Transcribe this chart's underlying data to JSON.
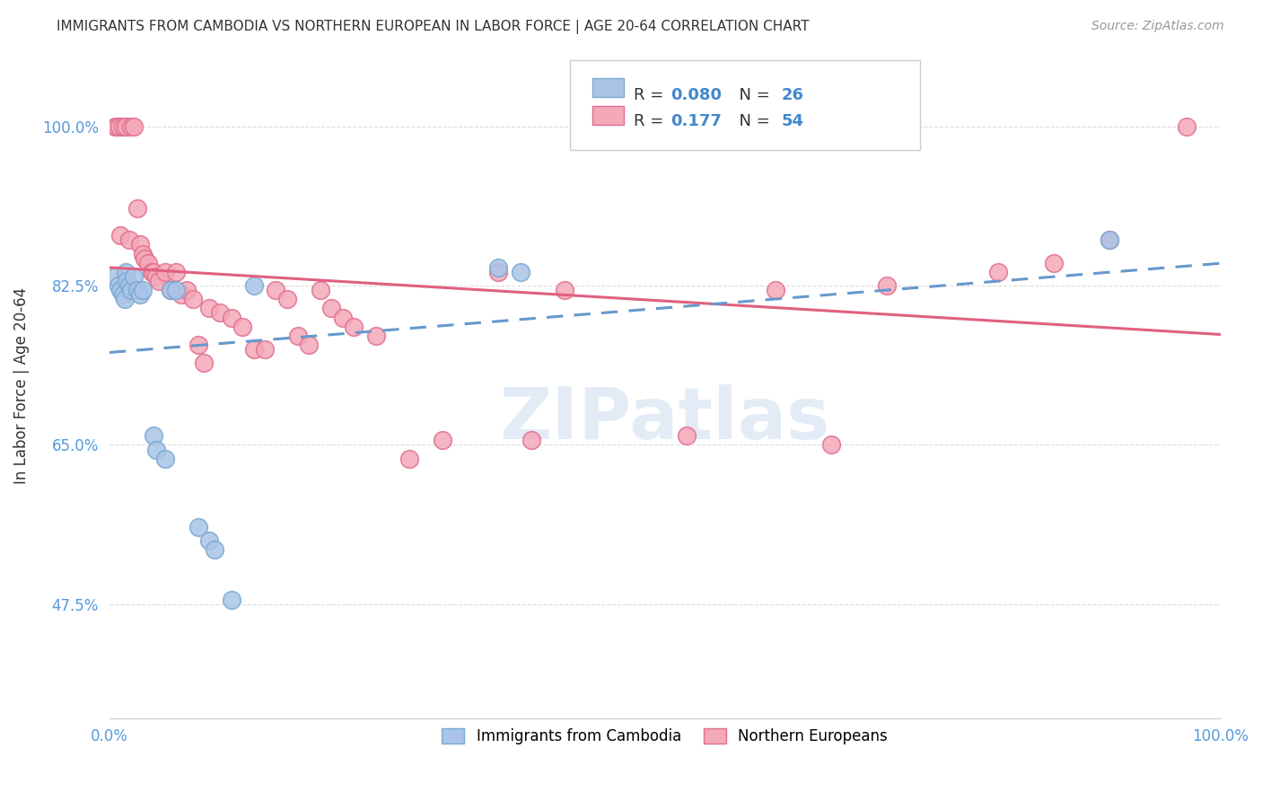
{
  "title": "IMMIGRANTS FROM CAMBODIA VS NORTHERN EUROPEAN IN LABOR FORCE | AGE 20-64 CORRELATION CHART",
  "source": "Source: ZipAtlas.com",
  "ylabel": "In Labor Force | Age 20-64",
  "xlim": [
    0.0,
    1.0
  ],
  "ylim": [
    0.35,
    1.08
  ],
  "xtick_positions": [
    0.0,
    1.0
  ],
  "xtick_labels": [
    "0.0%",
    "100.0%"
  ],
  "ytick_positions": [
    0.475,
    0.65,
    0.825,
    1.0
  ],
  "ytick_labels": [
    "47.5%",
    "65.0%",
    "82.5%",
    "100.0%"
  ],
  "grid_color": "#dddddd",
  "background_color": "#ffffff",
  "legend_labels": [
    "Immigrants from Cambodia",
    "Northern Europeans"
  ],
  "cambodia_color": "#aac4e8",
  "cambodia_edge_color": "#7aaad0",
  "northern_color": "#f4a8b8",
  "northern_edge_color": "#e07090",
  "cambodia_line_color": "#6699cc",
  "northern_line_color": "#e06080",
  "watermark": "ZIPatlas",
  "cambodia_x": [
    0.005,
    0.008,
    0.01,
    0.012,
    0.014,
    0.015,
    0.016,
    0.018,
    0.02,
    0.022,
    0.025,
    0.028,
    0.03,
    0.04,
    0.042,
    0.05,
    0.055,
    0.06,
    0.08,
    0.09,
    0.095,
    0.11,
    0.13,
    0.35,
    0.37,
    0.9
  ],
  "cambodia_y": [
    0.835,
    0.825,
    0.82,
    0.815,
    0.81,
    0.84,
    0.83,
    0.825,
    0.82,
    0.835,
    0.82,
    0.815,
    0.82,
    0.66,
    0.645,
    0.635,
    0.82,
    0.82,
    0.56,
    0.545,
    0.535,
    0.48,
    0.825,
    0.845,
    0.84,
    0.875
  ],
  "northern_x": [
    0.005,
    0.007,
    0.009,
    0.01,
    0.012,
    0.015,
    0.018,
    0.02,
    0.022,
    0.025,
    0.028,
    0.03,
    0.032,
    0.035,
    0.038,
    0.04,
    0.042,
    0.045,
    0.05,
    0.055,
    0.06,
    0.065,
    0.07,
    0.075,
    0.08,
    0.085,
    0.09,
    0.1,
    0.11,
    0.12,
    0.13,
    0.14,
    0.15,
    0.16,
    0.17,
    0.18,
    0.19,
    0.2,
    0.21,
    0.22,
    0.24,
    0.27,
    0.3,
    0.35,
    0.38,
    0.41,
    0.52,
    0.6,
    0.65,
    0.7,
    0.8,
    0.85,
    0.9,
    0.97
  ],
  "northern_y": [
    1.0,
    1.0,
    1.0,
    0.88,
    1.0,
    1.0,
    0.875,
    1.0,
    1.0,
    0.91,
    0.87,
    0.86,
    0.855,
    0.85,
    0.84,
    0.84,
    0.835,
    0.83,
    0.84,
    0.82,
    0.84,
    0.815,
    0.82,
    0.81,
    0.76,
    0.74,
    0.8,
    0.795,
    0.79,
    0.78,
    0.755,
    0.755,
    0.82,
    0.81,
    0.77,
    0.76,
    0.82,
    0.8,
    0.79,
    0.78,
    0.77,
    0.635,
    0.655,
    0.84,
    0.655,
    0.82,
    0.66,
    0.82,
    0.65,
    0.825,
    0.84,
    0.85,
    0.875,
    1.0
  ]
}
